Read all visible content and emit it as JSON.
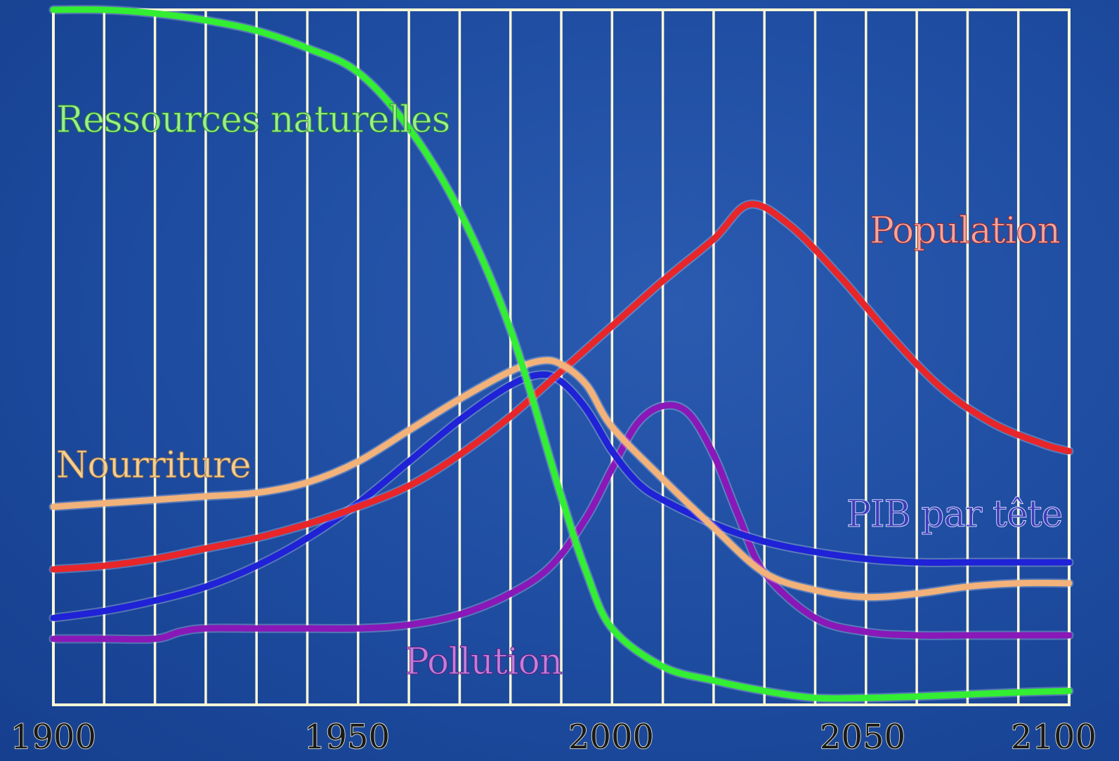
{
  "chart_data": {
    "type": "line",
    "title": "",
    "xlabel": "",
    "ylabel": "",
    "xlim": [
      1900,
      2100
    ],
    "ylim": [
      0,
      100
    ],
    "x_ticks": [
      "1900",
      "1950",
      "2000",
      "2050",
      "2100"
    ],
    "grid": "vertical",
    "colors": {
      "background": "#1f4ea3",
      "grid": "#fbf6d6",
      "ressources": "#33ee33",
      "population": "#e8262a",
      "nourriture": "#f2b27a",
      "pib": "#1f22d6",
      "pollution": "#8a18b8"
    },
    "series": [
      {
        "name": "Ressources naturelles",
        "key": "ressources",
        "x": [
          1900,
          1910,
          1920,
          1930,
          1940,
          1950,
          1960,
          1970,
          1980,
          1990,
          2000,
          2005,
          2010,
          2020,
          2030,
          2040,
          2050,
          2060,
          2070,
          2080,
          2090,
          2100
        ],
        "values": [
          100,
          100,
          99.5,
          98.5,
          97,
          94.5,
          91,
          83,
          71,
          54,
          30,
          19,
          11,
          5.5,
          3.5,
          2,
          1,
          1,
          1.2,
          1.5,
          1.8,
          2
        ]
      },
      {
        "name": "Population",
        "key": "population",
        "x": [
          1900,
          1910,
          1920,
          1930,
          1940,
          1950,
          1960,
          1970,
          1980,
          1990,
          2000,
          2010,
          2020,
          2030,
          2037,
          2045,
          2055,
          2065,
          2075,
          2085,
          2095,
          2100
        ],
        "values": [
          19.5,
          20,
          21,
          22.5,
          24,
          26,
          28.5,
          31.5,
          36,
          41.5,
          48,
          54.5,
          61,
          67,
          72,
          69,
          61.5,
          53,
          45.5,
          40.5,
          37.5,
          36.5
        ]
      },
      {
        "name": "Nourriture",
        "key": "nourriture",
        "x": [
          1900,
          1910,
          1920,
          1930,
          1940,
          1950,
          1960,
          1970,
          1980,
          1990,
          1996,
          2000,
          2005,
          2010,
          2020,
          2030,
          2040,
          2050,
          2060,
          2070,
          2080,
          2090,
          2100
        ],
        "values": [
          28.5,
          29,
          29.5,
          30,
          30.5,
          32,
          35,
          39.5,
          44,
          48,
          49.5,
          49,
          46,
          40,
          32.5,
          25.5,
          19,
          16.5,
          15.5,
          16,
          17,
          17.5,
          17.5
        ]
      },
      {
        "name": "PIB par tête",
        "key": "pib",
        "x": [
          1900,
          1910,
          1920,
          1930,
          1940,
          1950,
          1960,
          1970,
          1980,
          1990,
          1996,
          2000,
          2005,
          2010,
          2015,
          2020,
          2030,
          2040,
          2050,
          2060,
          2070,
          2080,
          2090,
          2100
        ],
        "values": [
          12.5,
          13.5,
          15,
          17,
          20,
          24,
          29,
          35,
          41,
          46,
          47.5,
          46.5,
          42.5,
          36.5,
          32,
          29.5,
          26,
          23.5,
          22,
          21,
          20.5,
          20.5,
          20.5,
          20.5
        ]
      },
      {
        "name": "Pollution",
        "key": "pollution",
        "x": [
          1900,
          1910,
          1920,
          1925,
          1930,
          1940,
          1950,
          1960,
          1970,
          1980,
          1990,
          1998,
          2005,
          2010,
          2015,
          2020,
          2025,
          2030,
          2035,
          2040,
          2050,
          2060,
          2070,
          2080,
          2090,
          2100
        ],
        "values": [
          9.5,
          9.5,
          9.5,
          10.5,
          11,
          11,
          11,
          11,
          11.5,
          13,
          16,
          20,
          27,
          34,
          40.5,
          43,
          42,
          36,
          27,
          19,
          12.5,
          10.5,
          10,
          10,
          10,
          10
        ]
      }
    ]
  }
}
